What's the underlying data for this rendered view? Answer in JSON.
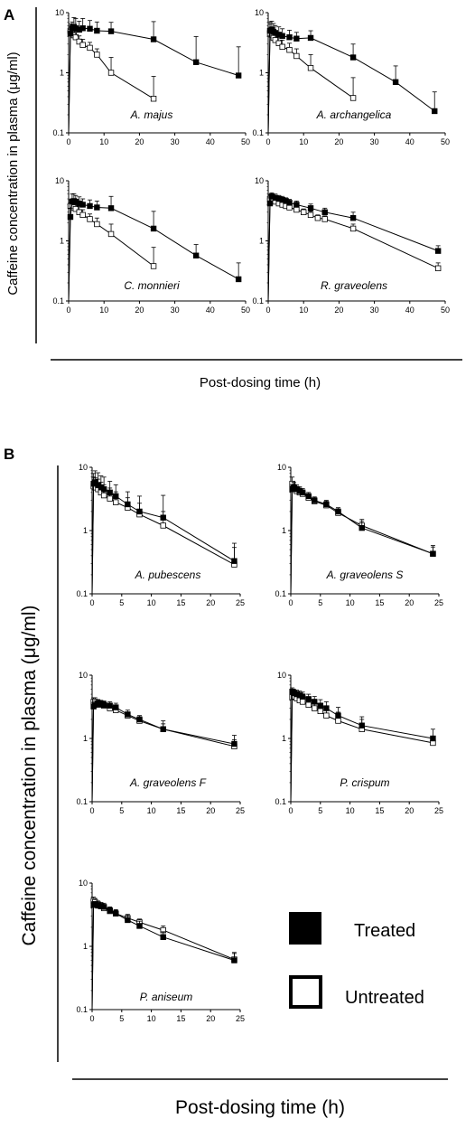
{
  "figure": {
    "panel_letters": [
      "A",
      "B"
    ],
    "legend": {
      "treated": "Treated",
      "untreated": "Untreated"
    },
    "section_A": {
      "ylabel": "Caffeine concentration in plasma (μg/ml)",
      "xlabel": "Post-dosing time (h)"
    },
    "section_B": {
      "ylabel": "Caffeine concentration in plasma (μg/ml)",
      "xlabel": "Post-dosing time (h)"
    }
  },
  "chart_data": [
    {
      "type": "line",
      "panel": "A",
      "title": "A. majus",
      "yscale": "log",
      "ylim": [
        0.1,
        10
      ],
      "xlim": [
        0,
        50
      ],
      "yticks": [
        "0.1",
        "1",
        "10"
      ],
      "xticks": [
        "0",
        "10",
        "20",
        "30",
        "40",
        "50"
      ],
      "series": [
        {
          "name": "Treated",
          "x": [
            0.5,
            1,
            1.5,
            2,
            3,
            4,
            6,
            8,
            12,
            24,
            36,
            48
          ],
          "y": [
            4.5,
            5.5,
            5.8,
            5.5,
            5.2,
            5.5,
            5.4,
            5.0,
            4.9,
            3.6,
            1.5,
            0.9
          ],
          "err": [
            0.8,
            1.5,
            2.5,
            2.5,
            2.0,
            2.5,
            2.0,
            2.0,
            2.0,
            3.5,
            2.5,
            1.8
          ]
        },
        {
          "name": "Untreated",
          "x": [
            0.5,
            1,
            1.5,
            2,
            3,
            4,
            6,
            8,
            12,
            24
          ],
          "y": [
            5.0,
            4.8,
            4.2,
            3.9,
            3.3,
            2.9,
            2.6,
            2.0,
            1.0,
            0.37
          ],
          "err": [
            1.5,
            1.5,
            1.0,
            1.0,
            0.8,
            0.7,
            0.6,
            0.5,
            0.8,
            0.5
          ]
        }
      ]
    },
    {
      "type": "line",
      "panel": "A",
      "title": "A. archangelica",
      "yscale": "log",
      "ylim": [
        0.1,
        10
      ],
      "xlim": [
        0,
        50
      ],
      "yticks": [
        "0.1",
        "1",
        "10"
      ],
      "xticks": [
        "0",
        "10",
        "20",
        "30",
        "40",
        "50"
      ],
      "series": [
        {
          "name": "Treated",
          "x": [
            0.5,
            1,
            1.5,
            2,
            3,
            4,
            6,
            8,
            12,
            24,
            36,
            47
          ],
          "y": [
            5.0,
            5.2,
            4.8,
            4.6,
            4.3,
            4.1,
            3.9,
            3.7,
            3.8,
            1.8,
            0.7,
            0.23
          ],
          "err": [
            2.0,
            2.0,
            1.8,
            1.5,
            1.5,
            1.3,
            1.2,
            1.0,
            1.2,
            1.2,
            0.6,
            0.25
          ]
        },
        {
          "name": "Untreated",
          "x": [
            0.5,
            1,
            1.5,
            2,
            3,
            4,
            6,
            8,
            12,
            24
          ],
          "y": [
            4.5,
            4.3,
            3.8,
            3.5,
            3.1,
            2.7,
            2.4,
            1.9,
            1.2,
            0.38
          ],
          "err": [
            2.0,
            1.5,
            1.2,
            1.0,
            0.9,
            0.8,
            0.7,
            0.6,
            0.8,
            0.45
          ]
        }
      ]
    },
    {
      "type": "line",
      "panel": "A",
      "title": "C. monnieri",
      "yscale": "log",
      "ylim": [
        0.1,
        10
      ],
      "xlim": [
        0,
        50
      ],
      "yticks": [
        "0.1",
        "1",
        "10"
      ],
      "xticks": [
        "0",
        "10",
        "20",
        "30",
        "40",
        "50"
      ],
      "series": [
        {
          "name": "Treated",
          "x": [
            0.5,
            1,
            1.5,
            2,
            3,
            4,
            6,
            8,
            12,
            24,
            36,
            48
          ],
          "y": [
            2.5,
            4.5,
            4.6,
            4.5,
            4.2,
            4.0,
            3.8,
            3.6,
            3.5,
            1.6,
            0.57,
            0.23
          ],
          "err": [
            1.0,
            1.5,
            1.5,
            1.2,
            1.2,
            1.0,
            1.0,
            1.0,
            2.0,
            1.5,
            0.3,
            0.2
          ]
        },
        {
          "name": "Untreated",
          "x": [
            0.5,
            1,
            1.5,
            2,
            3,
            4,
            6,
            8,
            12,
            24
          ],
          "y": [
            3.8,
            4.0,
            3.6,
            3.4,
            3.0,
            2.7,
            2.3,
            1.9,
            1.3,
            0.38
          ],
          "err": [
            1.0,
            1.0,
            0.9,
            0.8,
            0.7,
            0.6,
            0.5,
            0.5,
            0.6,
            0.4
          ]
        }
      ]
    },
    {
      "type": "line",
      "panel": "A",
      "title": "R. graveolens",
      "yscale": "log",
      "ylim": [
        0.1,
        10
      ],
      "xlim": [
        0,
        50
      ],
      "yticks": [
        "0.1",
        "1",
        "10"
      ],
      "xticks": [
        "0",
        "10",
        "20",
        "30",
        "40",
        "50"
      ],
      "series": [
        {
          "name": "Treated",
          "x": [
            0.5,
            1,
            2,
            3,
            4,
            5,
            6,
            8,
            12,
            16,
            24,
            48
          ],
          "y": [
            4.2,
            5.5,
            5.2,
            5.0,
            4.8,
            4.6,
            4.3,
            4.0,
            3.5,
            3.0,
            2.4,
            0.68
          ],
          "err": [
            1.0,
            0.8,
            0.8,
            0.7,
            0.7,
            0.6,
            0.6,
            0.6,
            0.6,
            0.5,
            0.6,
            0.15
          ]
        },
        {
          "name": "Untreated",
          "x": [
            0.5,
            1,
            2,
            3,
            4,
            5,
            6,
            8,
            10,
            12,
            14,
            16,
            24,
            48
          ],
          "y": [
            5.0,
            4.8,
            4.5,
            4.2,
            4.0,
            3.8,
            3.6,
            3.3,
            3.0,
            2.7,
            2.4,
            2.3,
            1.6,
            0.35
          ],
          "err": [
            0.8,
            0.7,
            0.6,
            0.6,
            0.5,
            0.5,
            0.5,
            0.4,
            0.4,
            0.4,
            0.3,
            0.3,
            0.3,
            0.08
          ]
        }
      ]
    },
    {
      "type": "line",
      "panel": "B",
      "title": "A. pubescens",
      "yscale": "log",
      "ylim": [
        0.1,
        10
      ],
      "xlim": [
        0,
        25
      ],
      "yticks": [
        "0.1",
        "1",
        "10"
      ],
      "xticks": [
        "0",
        "5",
        "10",
        "15",
        "20",
        "25"
      ],
      "series": [
        {
          "name": "Treated",
          "x": [
            0.25,
            0.5,
            1,
            1.5,
            2,
            3,
            4,
            6,
            8,
            12,
            24
          ],
          "y": [
            5.5,
            5.8,
            5.2,
            4.8,
            4.5,
            4.0,
            3.5,
            2.6,
            2.0,
            1.6,
            0.33
          ],
          "err": [
            2.5,
            3.0,
            3.0,
            2.5,
            2.5,
            2.0,
            1.8,
            1.5,
            1.5,
            2.0,
            0.3
          ]
        },
        {
          "name": "Untreated",
          "x": [
            0.25,
            0.5,
            1,
            1.5,
            2,
            3,
            4,
            6,
            8,
            12,
            24
          ],
          "y": [
            5.0,
            4.8,
            4.5,
            4.0,
            3.6,
            3.2,
            2.8,
            2.3,
            1.8,
            1.2,
            0.29
          ],
          "err": [
            2.0,
            2.0,
            2.0,
            1.8,
            1.7,
            1.5,
            1.3,
            1.0,
            0.9,
            0.8,
            0.25
          ]
        }
      ]
    },
    {
      "type": "line",
      "panel": "B",
      "title": "A. graveolens S",
      "yscale": "log",
      "ylim": [
        0.1,
        10
      ],
      "xlim": [
        0,
        25
      ],
      "yticks": [
        "0.1",
        "1",
        "10"
      ],
      "xticks": [
        "0",
        "5",
        "10",
        "15",
        "20",
        "25"
      ],
      "series": [
        {
          "name": "Treated",
          "x": [
            0.25,
            0.5,
            1,
            1.5,
            2,
            3,
            4,
            6,
            8,
            12,
            24
          ],
          "y": [
            4.5,
            4.7,
            4.5,
            4.2,
            4.0,
            3.5,
            3.0,
            2.6,
            2.0,
            1.1,
            0.43
          ],
          "err": [
            0.8,
            0.8,
            0.8,
            0.7,
            0.6,
            0.5,
            0.4,
            0.4,
            0.3,
            0.3,
            0.15
          ]
        },
        {
          "name": "Untreated",
          "x": [
            0.25,
            0.5,
            1,
            1.5,
            2,
            3,
            4,
            6,
            8,
            12,
            24
          ],
          "y": [
            5.5,
            4.8,
            4.2,
            4.0,
            3.8,
            3.3,
            2.9,
            2.5,
            1.9,
            1.2,
            0.43
          ],
          "err": [
            1.5,
            1.0,
            0.8,
            0.7,
            0.6,
            0.5,
            0.4,
            0.4,
            0.3,
            0.3,
            0.12
          ]
        }
      ]
    },
    {
      "type": "line",
      "panel": "B",
      "title": "A. graveolens F",
      "yscale": "log",
      "ylim": [
        0.1,
        10
      ],
      "xlim": [
        0,
        25
      ],
      "yticks": [
        "0.1",
        "1",
        "10"
      ],
      "xticks": [
        "0",
        "5",
        "10",
        "15",
        "20",
        "25"
      ],
      "series": [
        {
          "name": "Treated",
          "x": [
            0.25,
            0.5,
            1,
            1.5,
            2,
            3,
            4,
            6,
            8,
            12,
            24
          ],
          "y": [
            3.2,
            3.4,
            3.6,
            3.5,
            3.4,
            3.3,
            3.1,
            2.4,
            2.0,
            1.4,
            0.82
          ],
          "err": [
            0.5,
            0.5,
            0.5,
            0.5,
            0.5,
            0.5,
            0.5,
            0.4,
            0.3,
            0.5,
            0.3
          ]
        },
        {
          "name": "Untreated",
          "x": [
            0.25,
            0.5,
            1,
            1.5,
            2,
            3,
            4,
            6,
            8,
            12,
            24
          ],
          "y": [
            3.8,
            3.8,
            3.6,
            3.4,
            3.3,
            3.0,
            2.8,
            2.3,
            1.9,
            1.4,
            0.75
          ],
          "err": [
            0.6,
            0.6,
            0.5,
            0.5,
            0.5,
            0.4,
            0.4,
            0.3,
            0.3,
            0.3,
            0.2
          ]
        }
      ]
    },
    {
      "type": "line",
      "panel": "B",
      "title": "P. crispum",
      "yscale": "log",
      "ylim": [
        0.1,
        10
      ],
      "xlim": [
        0,
        25
      ],
      "yticks": [
        "0.1",
        "1",
        "10"
      ],
      "xticks": [
        "0",
        "5",
        "10",
        "15",
        "20",
        "25"
      ],
      "series": [
        {
          "name": "Treated",
          "x": [
            0.25,
            0.5,
            1,
            1.5,
            2,
            3,
            4,
            5,
            6,
            8,
            12,
            24
          ],
          "y": [
            5.5,
            5.2,
            5.0,
            4.8,
            4.6,
            4.2,
            3.8,
            3.3,
            3.0,
            2.3,
            1.6,
            1.0
          ],
          "err": [
            0.8,
            0.8,
            0.8,
            0.8,
            0.8,
            0.8,
            0.8,
            0.8,
            0.8,
            0.8,
            0.6,
            0.4
          ]
        },
        {
          "name": "Untreated",
          "x": [
            0.25,
            0.5,
            1,
            1.5,
            2,
            3,
            4,
            5,
            6,
            8,
            12,
            24
          ],
          "y": [
            4.5,
            4.6,
            4.3,
            4.0,
            3.8,
            3.4,
            3.0,
            2.7,
            2.3,
            1.9,
            1.4,
            0.85
          ],
          "err": [
            1.2,
            1.2,
            1.2,
            1.2,
            1.1,
            1.0,
            1.0,
            0.9,
            0.8,
            0.7,
            0.6,
            0.15
          ]
        }
      ]
    },
    {
      "type": "line",
      "panel": "B",
      "title": "P. aniseum",
      "yscale": "log",
      "ylim": [
        0.1,
        10
      ],
      "xlim": [
        0,
        25
      ],
      "yticks": [
        "0.1",
        "1",
        "10"
      ],
      "xticks": [
        "0",
        "5",
        "10",
        "15",
        "20",
        "25"
      ],
      "series": [
        {
          "name": "Treated",
          "x": [
            0.25,
            0.5,
            1,
            1.5,
            2,
            3,
            4,
            6,
            8,
            12,
            24
          ],
          "y": [
            4.5,
            4.5,
            4.4,
            4.3,
            4.2,
            3.7,
            3.3,
            2.6,
            2.1,
            1.4,
            0.6
          ],
          "err": [
            0.6,
            0.6,
            0.6,
            0.6,
            0.6,
            0.5,
            0.5,
            0.4,
            0.4,
            0.3,
            0.2
          ]
        },
        {
          "name": "Untreated",
          "x": [
            0.25,
            0.5,
            1,
            1.5,
            2,
            3,
            4,
            6,
            8,
            12,
            24
          ],
          "y": [
            5.2,
            5.0,
            4.6,
            4.3,
            4.0,
            3.6,
            3.3,
            2.8,
            2.4,
            1.8,
            0.62
          ],
          "err": [
            0.8,
            0.7,
            0.6,
            0.6,
            0.5,
            0.5,
            0.4,
            0.4,
            0.3,
            0.3,
            0.15
          ]
        }
      ]
    }
  ]
}
